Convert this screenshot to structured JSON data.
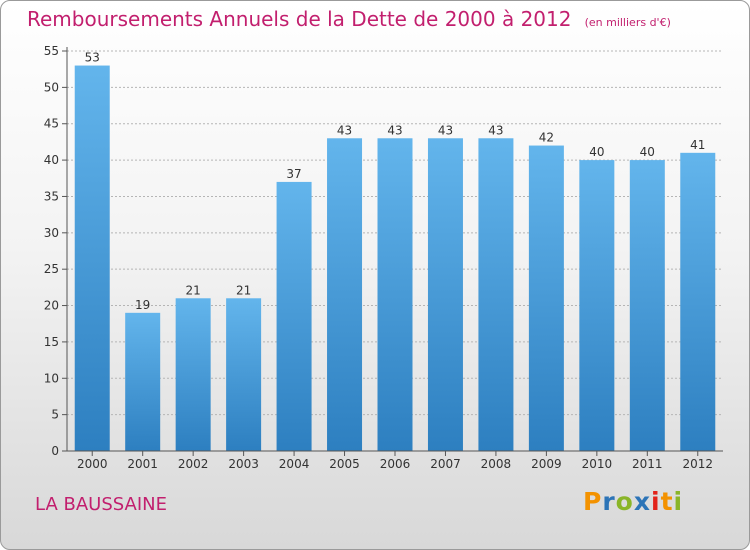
{
  "title": "Remboursements Annuels de la Dette de 2000 à 2012",
  "unit": "(en milliers d'€)",
  "commune": "LA BAUSSAINE",
  "logo": {
    "text": "Proxiti",
    "colors": [
      "#f39200",
      "#2c74b7",
      "#8ab528",
      "#2c74b7",
      "#e2231a",
      "#f39200",
      "#8ab528"
    ]
  },
  "colors": {
    "bar_light": "#63b5ec",
    "bar_dark": "#2d7fc0",
    "title": "#c21f6e",
    "axis": "#555555",
    "grid": "#b5b5b5"
  },
  "chart_data": {
    "type": "bar",
    "categories": [
      "2000",
      "2001",
      "2002",
      "2003",
      "2004",
      "2005",
      "2006",
      "2007",
      "2008",
      "2009",
      "2010",
      "2011",
      "2012"
    ],
    "values": [
      53,
      19,
      21,
      21,
      37,
      43,
      43,
      43,
      43,
      42,
      40,
      40,
      41
    ],
    "ylim": [
      0,
      55
    ],
    "yticks": [
      0,
      5,
      10,
      15,
      20,
      25,
      30,
      35,
      40,
      45,
      50,
      55
    ],
    "grid": true,
    "xlabel": "",
    "ylabel": ""
  }
}
